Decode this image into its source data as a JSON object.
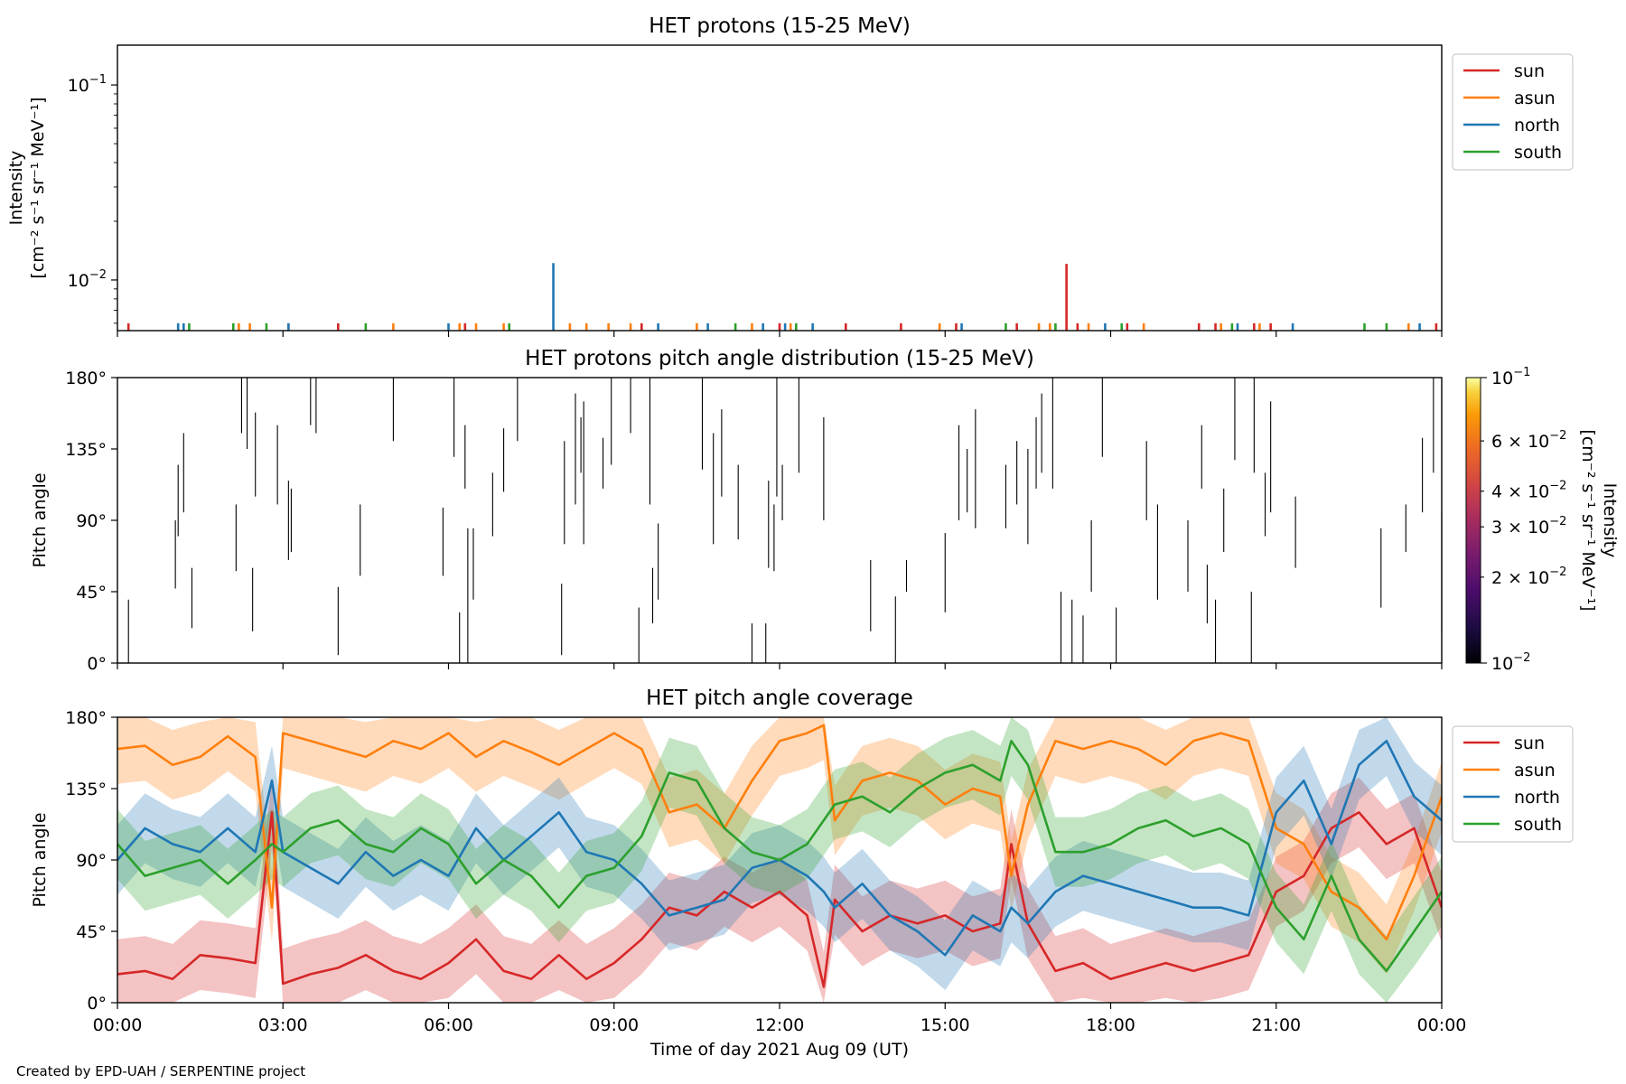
{
  "figure": {
    "footer": "Created by EPD-UAH / SERPENTINE project",
    "xlabel": "Time of day 2021 Aug 09 (UT)",
    "x_ticks": [
      "00:00",
      "03:00",
      "06:00",
      "09:00",
      "12:00",
      "15:00",
      "18:00",
      "21:00",
      "00:00"
    ],
    "x_range_hours": [
      0,
      24
    ]
  },
  "chart_data": [
    {
      "type": "bar",
      "title": "HET protons (15-25 MeV)",
      "ylabel_line1": "Intensity",
      "ylabel_line2": "[cm⁻² s⁻¹ sr⁻¹ MeV⁻¹]",
      "yscale": "log",
      "ylim": [
        0.0055,
        0.16
      ],
      "y_ticks": [
        {
          "value": 0.1,
          "base": "10",
          "exp": "−1"
        },
        {
          "value": 0.01,
          "base": "10",
          "exp": "−2"
        }
      ],
      "legend": {
        "placement": "outside-right",
        "entries": [
          "sun",
          "asun",
          "north",
          "south"
        ]
      },
      "colors": {
        "sun": "#d62728",
        "asun": "#ff7f0e",
        "north": "#1f77b4",
        "south": "#2ca02c"
      },
      "series": [
        {
          "name": "sun",
          "x": [
            0.2,
            4.0,
            6.3,
            9.5,
            12.0,
            13.2,
            14.2,
            15.2,
            16.3,
            17.2,
            17.4,
            18.3,
            19.6,
            19.9,
            20.6,
            20.9,
            23.9
          ],
          "values": [
            0.006,
            0.006,
            0.006,
            0.006,
            0.006,
            0.006,
            0.006,
            0.006,
            0.006,
            0.0121,
            0.006,
            0.006,
            0.006,
            0.006,
            0.006,
            0.006,
            0.006
          ]
        },
        {
          "name": "asun",
          "x": [
            2.2,
            2.4,
            3.1,
            5.0,
            6.2,
            6.5,
            7.0,
            8.2,
            8.5,
            8.9,
            9.3,
            10.5,
            11.5,
            12.2,
            14.9,
            16.7,
            16.9,
            17.6,
            18.6,
            20.0,
            20.7,
            23.4
          ],
          "values": [
            0.006,
            0.006,
            0.006,
            0.006,
            0.006,
            0.006,
            0.006,
            0.006,
            0.006,
            0.006,
            0.006,
            0.006,
            0.006,
            0.006,
            0.006,
            0.006,
            0.006,
            0.006,
            0.006,
            0.006,
            0.006,
            0.006
          ]
        },
        {
          "name": "north",
          "x": [
            1.1,
            1.2,
            3.1,
            6.0,
            7.9,
            9.8,
            10.7,
            11.7,
            12.1,
            12.6,
            15.3,
            17.9,
            20.3,
            21.3,
            23.6
          ],
          "values": [
            0.006,
            0.006,
            0.006,
            0.006,
            0.0122,
            0.006,
            0.006,
            0.006,
            0.006,
            0.006,
            0.006,
            0.006,
            0.006,
            0.006,
            0.006
          ]
        },
        {
          "name": "south",
          "x": [
            1.3,
            2.1,
            2.7,
            4.5,
            7.1,
            11.2,
            12.3,
            16.1,
            17.0,
            18.2,
            20.2,
            22.6,
            23.0
          ],
          "values": [
            0.006,
            0.006,
            0.006,
            0.006,
            0.006,
            0.006,
            0.006,
            0.006,
            0.006,
            0.006,
            0.006,
            0.006,
            0.006
          ]
        }
      ]
    },
    {
      "type": "heatmap",
      "title": "HET protons pitch angle distribution (15-25 MeV)",
      "ylabel": "Pitch angle",
      "ylim": [
        0,
        180
      ],
      "y_ticks": [
        "0°",
        "45°",
        "90°",
        "135°",
        "180°"
      ],
      "colorbar": {
        "label_line1": "Intensity",
        "label_line2": "[cm⁻² s⁻¹ sr⁻¹ MeV⁻¹]",
        "scale": "log",
        "range": [
          0.01,
          0.1
        ],
        "colormap": "inferno",
        "ticks": [
          {
            "value": 0.1,
            "text": "10",
            "exp": "−1",
            "major": true
          },
          {
            "value": 0.06,
            "text": "6 × 10",
            "exp": "−2",
            "major": false
          },
          {
            "value": 0.04,
            "text": "4 × 10",
            "exp": "−2",
            "major": false
          },
          {
            "value": 0.03,
            "text": "3 × 10",
            "exp": "−2",
            "major": false
          },
          {
            "value": 0.02,
            "text": "2 × 10",
            "exp": "−2",
            "major": false
          },
          {
            "value": 0.01,
            "text": "10",
            "exp": "−2",
            "major": true
          }
        ]
      },
      "segments": [
        [
          0.2,
          0,
          40
        ],
        [
          1.05,
          47,
          90
        ],
        [
          1.1,
          80,
          125
        ],
        [
          1.2,
          95,
          145
        ],
        [
          1.35,
          22,
          60
        ],
        [
          2.15,
          58,
          100
        ],
        [
          2.25,
          145,
          180
        ],
        [
          2.35,
          135,
          180
        ],
        [
          2.45,
          20,
          60
        ],
        [
          2.5,
          105,
          158
        ],
        [
          2.9,
          100,
          150
        ],
        [
          3.1,
          65,
          115
        ],
        [
          3.15,
          70,
          110
        ],
        [
          3.5,
          150,
          180
        ],
        [
          3.6,
          145,
          180
        ],
        [
          4.0,
          5,
          48
        ],
        [
          4.4,
          55,
          100
        ],
        [
          5.0,
          140,
          180
        ],
        [
          5.9,
          55,
          98
        ],
        [
          6.1,
          130,
          180
        ],
        [
          6.2,
          0,
          32
        ],
        [
          6.3,
          110,
          150
        ],
        [
          6.35,
          0,
          85
        ],
        [
          6.45,
          40,
          85
        ],
        [
          6.8,
          80,
          120
        ],
        [
          7.0,
          108,
          148
        ],
        [
          7.25,
          140,
          180
        ],
        [
          8.05,
          5,
          50
        ],
        [
          8.1,
          75,
          140
        ],
        [
          8.3,
          100,
          170
        ],
        [
          8.4,
          120,
          155
        ],
        [
          8.45,
          75,
          165
        ],
        [
          8.8,
          110,
          142
        ],
        [
          8.95,
          125,
          180
        ],
        [
          9.3,
          145,
          180
        ],
        [
          9.45,
          0,
          35
        ],
        [
          9.65,
          100,
          180
        ],
        [
          9.7,
          25,
          60
        ],
        [
          9.8,
          40,
          88
        ],
        [
          10.6,
          122,
          180
        ],
        [
          10.8,
          75,
          145
        ],
        [
          10.95,
          105,
          160
        ],
        [
          11.25,
          78,
          125
        ],
        [
          11.5,
          0,
          25
        ],
        [
          11.75,
          0,
          25
        ],
        [
          11.8,
          60,
          115
        ],
        [
          11.9,
          58,
          100
        ],
        [
          11.95,
          105,
          180
        ],
        [
          12.05,
          90,
          125
        ],
        [
          12.35,
          120,
          180
        ],
        [
          12.8,
          90,
          155
        ],
        [
          13.65,
          20,
          65
        ],
        [
          14.1,
          0,
          42
        ],
        [
          14.3,
          45,
          65
        ],
        [
          15.0,
          32,
          82
        ],
        [
          15.25,
          90,
          150
        ],
        [
          15.4,
          95,
          135
        ],
        [
          15.55,
          85,
          160
        ],
        [
          16.1,
          85,
          125
        ],
        [
          16.3,
          100,
          140
        ],
        [
          16.5,
          75,
          135
        ],
        [
          16.65,
          110,
          155
        ],
        [
          16.75,
          120,
          170
        ],
        [
          16.95,
          110,
          180
        ],
        [
          17.1,
          0,
          45
        ],
        [
          17.3,
          0,
          40
        ],
        [
          17.5,
          0,
          30
        ],
        [
          17.65,
          45,
          90
        ],
        [
          17.85,
          130,
          180
        ],
        [
          18.1,
          0,
          35
        ],
        [
          18.65,
          90,
          140
        ],
        [
          18.85,
          40,
          100
        ],
        [
          19.4,
          45,
          90
        ],
        [
          19.65,
          110,
          150
        ],
        [
          19.75,
          25,
          62
        ],
        [
          19.9,
          0,
          40
        ],
        [
          20.05,
          70,
          110
        ],
        [
          20.25,
          128,
          180
        ],
        [
          20.55,
          0,
          45
        ],
        [
          20.6,
          120,
          180
        ],
        [
          20.8,
          80,
          120
        ],
        [
          20.9,
          95,
          165
        ],
        [
          21.35,
          60,
          105
        ],
        [
          22.9,
          35,
          85
        ],
        [
          23.35,
          70,
          100
        ],
        [
          23.65,
          95,
          142
        ],
        [
          23.85,
          120,
          180
        ],
        [
          24.0,
          20,
          95
        ]
      ]
    },
    {
      "type": "line",
      "title": "HET pitch angle coverage",
      "ylabel": "Pitch angle",
      "ylim": [
        0,
        180
      ],
      "y_ticks": [
        "0°",
        "45°",
        "90°",
        "135°",
        "180°"
      ],
      "legend": {
        "placement": "outside-right",
        "entries": [
          "sun",
          "asun",
          "north",
          "south"
        ]
      },
      "band_halfwidth_deg": 22,
      "colors": {
        "sun": "#d62728",
        "asun": "#ff7f0e",
        "north": "#1f77b4",
        "south": "#2ca02c"
      },
      "series": [
        {
          "name": "sun",
          "x": [
            0,
            0.5,
            1.0,
            1.5,
            2.0,
            2.5,
            2.8,
            3.0,
            3.5,
            4.0,
            4.5,
            5.0,
            5.5,
            6.0,
            6.5,
            7.0,
            7.5,
            8.0,
            8.5,
            9.0,
            9.5,
            10.0,
            10.5,
            11.0,
            11.5,
            12.0,
            12.5,
            12.8,
            13.0,
            13.5,
            14.0,
            14.5,
            15.0,
            15.5,
            16.0,
            16.2,
            16.5,
            17.0,
            17.5,
            18.0,
            18.5,
            19.0,
            19.5,
            20.0,
            20.5,
            21.0,
            21.5,
            22.0,
            22.5,
            23.0,
            23.5,
            24.0
          ],
          "y": [
            18,
            20,
            15,
            30,
            28,
            25,
            120,
            12,
            18,
            22,
            30,
            20,
            15,
            25,
            40,
            20,
            15,
            30,
            15,
            25,
            40,
            60,
            55,
            70,
            60,
            70,
            55,
            10,
            65,
            45,
            55,
            50,
            55,
            45,
            50,
            100,
            50,
            20,
            25,
            15,
            20,
            25,
            20,
            25,
            30,
            70,
            80,
            110,
            120,
            100,
            110,
            60
          ]
        },
        {
          "name": "asun",
          "x": [
            0,
            0.5,
            1.0,
            1.5,
            2.0,
            2.5,
            2.8,
            3.0,
            3.5,
            4.0,
            4.5,
            5.0,
            5.5,
            6.0,
            6.5,
            7.0,
            7.5,
            8.0,
            8.5,
            9.0,
            9.5,
            10.0,
            10.5,
            11.0,
            11.5,
            12.0,
            12.5,
            12.8,
            13.0,
            13.5,
            14.0,
            14.5,
            15.0,
            15.5,
            16.0,
            16.2,
            16.5,
            17.0,
            17.5,
            18.0,
            18.5,
            19.0,
            19.5,
            20.0,
            20.5,
            21.0,
            21.5,
            22.0,
            22.5,
            23.0,
            23.5,
            24.0
          ],
          "y": [
            160,
            162,
            150,
            155,
            168,
            155,
            60,
            170,
            165,
            160,
            155,
            165,
            160,
            170,
            155,
            165,
            158,
            150,
            160,
            170,
            160,
            120,
            125,
            110,
            140,
            165,
            170,
            175,
            115,
            140,
            145,
            140,
            125,
            135,
            130,
            80,
            125,
            165,
            160,
            165,
            160,
            150,
            165,
            170,
            165,
            110,
            100,
            70,
            60,
            40,
            80,
            130
          ]
        },
        {
          "name": "north",
          "x": [
            0,
            0.5,
            1.0,
            1.5,
            2.0,
            2.5,
            2.8,
            3.0,
            3.5,
            4.0,
            4.5,
            5.0,
            5.5,
            6.0,
            6.5,
            7.0,
            7.5,
            8.0,
            8.5,
            9.0,
            9.5,
            10.0,
            10.5,
            11.0,
            11.5,
            12.0,
            12.5,
            12.8,
            13.0,
            13.5,
            14.0,
            14.5,
            15.0,
            15.5,
            16.0,
            16.2,
            16.5,
            17.0,
            17.5,
            18.0,
            18.5,
            19.0,
            19.5,
            20.0,
            20.5,
            21.0,
            21.5,
            22.0,
            22.5,
            23.0,
            23.5,
            24.0
          ],
          "y": [
            90,
            110,
            100,
            95,
            110,
            95,
            140,
            95,
            85,
            75,
            95,
            80,
            90,
            80,
            110,
            90,
            105,
            120,
            95,
            90,
            75,
            55,
            60,
            65,
            85,
            90,
            80,
            70,
            60,
            75,
            55,
            45,
            30,
            55,
            45,
            60,
            50,
            70,
            80,
            75,
            70,
            65,
            60,
            60,
            55,
            120,
            140,
            100,
            150,
            165,
            130,
            115
          ]
        },
        {
          "name": "south",
          "x": [
            0,
            0.5,
            1.0,
            1.5,
            2.0,
            2.5,
            2.8,
            3.0,
            3.5,
            4.0,
            4.5,
            5.0,
            5.5,
            6.0,
            6.5,
            7.0,
            7.5,
            8.0,
            8.5,
            9.0,
            9.5,
            10.0,
            10.5,
            11.0,
            11.5,
            12.0,
            12.5,
            12.8,
            13.0,
            13.5,
            14.0,
            14.5,
            15.0,
            15.5,
            16.0,
            16.2,
            16.5,
            17.0,
            17.5,
            18.0,
            18.5,
            19.0,
            19.5,
            20.0,
            20.5,
            21.0,
            21.5,
            22.0,
            22.5,
            23.0,
            23.5,
            24.0
          ],
          "y": [
            100,
            80,
            85,
            90,
            75,
            90,
            100,
            95,
            110,
            115,
            100,
            95,
            110,
            100,
            75,
            90,
            80,
            60,
            80,
            85,
            105,
            145,
            140,
            110,
            95,
            90,
            100,
            115,
            125,
            130,
            120,
            135,
            145,
            150,
            140,
            165,
            150,
            95,
            95,
            100,
            110,
            115,
            105,
            110,
            100,
            60,
            40,
            80,
            40,
            20,
            45,
            70
          ]
        }
      ]
    }
  ]
}
